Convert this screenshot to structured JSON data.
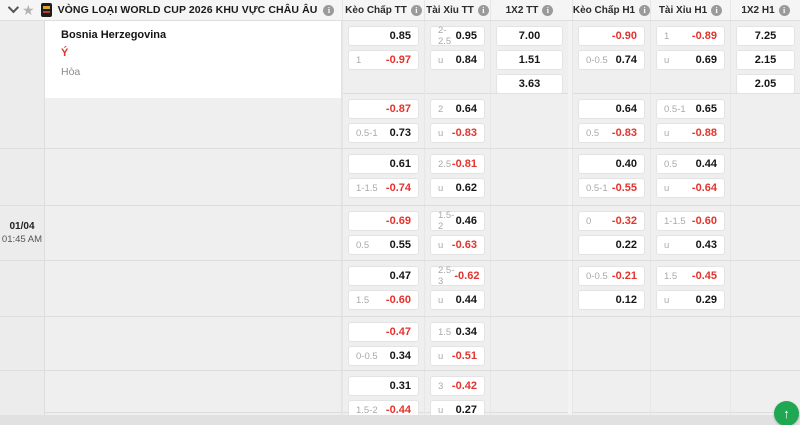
{
  "league": {
    "title": "VÒNG LOẠI WORLD CUP 2026 KHU VỰC CHÂU ÂU",
    "info_icon": "i"
  },
  "match": {
    "home": "Bosnia Herzegovina",
    "away": "Ý",
    "draw": "Hòa",
    "date": "01/04",
    "time": "01:45 AM"
  },
  "columns": [
    "Kèo Chấp TT",
    "Tài Xỉu TT",
    "1X2 TT",
    "Kèo Chấp H1",
    "Tài Xỉu H1",
    "1X2 H1"
  ],
  "colors": {
    "negative": "#e2342e",
    "scrolltop_green": "#1fa851"
  },
  "scrolltop_label": "↑",
  "blocks": [
    {
      "hdp_tt": [
        {
          "label": "",
          "value": "0.85"
        },
        {
          "label": "1",
          "value": "-0.97"
        }
      ],
      "ou_tt": [
        {
          "label": "2-2.5",
          "value": "0.95"
        },
        {
          "label": "u",
          "value": "0.84"
        }
      ],
      "x2_tt": [
        "7.00",
        "1.51",
        "3.63"
      ],
      "hdp_h1": [
        {
          "label": "",
          "value": "-0.90"
        },
        {
          "label": "0-0.5",
          "value": "0.74"
        }
      ],
      "ou_h1": [
        {
          "label": "1",
          "value": "-0.89"
        },
        {
          "label": "u",
          "value": "0.69"
        }
      ],
      "x2_h1": [
        "7.25",
        "2.15",
        "2.05"
      ]
    },
    {
      "hdp_tt": [
        {
          "label": "",
          "value": "-0.87"
        },
        {
          "label": "0.5-1",
          "value": "0.73"
        }
      ],
      "ou_tt": [
        {
          "label": "2",
          "value": "0.64"
        },
        {
          "label": "u",
          "value": "-0.83"
        }
      ],
      "x2_tt": [],
      "hdp_h1": [
        {
          "label": "",
          "value": "0.64"
        },
        {
          "label": "0.5",
          "value": "-0.83"
        }
      ],
      "ou_h1": [
        {
          "label": "0.5-1",
          "value": "0.65"
        },
        {
          "label": "u",
          "value": "-0.88"
        }
      ],
      "x2_h1": []
    },
    {
      "hdp_tt": [
        {
          "label": "",
          "value": "0.61"
        },
        {
          "label": "1-1.5",
          "value": "-0.74"
        }
      ],
      "ou_tt": [
        {
          "label": "2.5",
          "value": "-0.81"
        },
        {
          "label": "u",
          "value": "0.62"
        }
      ],
      "x2_tt": [],
      "hdp_h1": [
        {
          "label": "",
          "value": "0.40"
        },
        {
          "label": "0.5-1",
          "value": "-0.55"
        }
      ],
      "ou_h1": [
        {
          "label": "0.5",
          "value": "0.44"
        },
        {
          "label": "u",
          "value": "-0.64"
        }
      ],
      "x2_h1": []
    },
    {
      "hdp_tt": [
        {
          "label": "",
          "value": "-0.69"
        },
        {
          "label": "0.5",
          "value": "0.55"
        }
      ],
      "ou_tt": [
        {
          "label": "1.5-2",
          "value": "0.46"
        },
        {
          "label": "u",
          "value": "-0.63"
        }
      ],
      "x2_tt": [],
      "hdp_h1": [
        {
          "label": "0",
          "value": "-0.32"
        },
        {
          "label": "",
          "value": "0.22"
        }
      ],
      "ou_h1": [
        {
          "label": "1-1.5",
          "value": "-0.60"
        },
        {
          "label": "u",
          "value": "0.43"
        }
      ],
      "x2_h1": []
    },
    {
      "hdp_tt": [
        {
          "label": "",
          "value": "0.47"
        },
        {
          "label": "1.5",
          "value": "-0.60"
        }
      ],
      "ou_tt": [
        {
          "label": "2.5-3",
          "value": "-0.62"
        },
        {
          "label": "u",
          "value": "0.44"
        }
      ],
      "x2_tt": [],
      "hdp_h1": [
        {
          "label": "0-0.5",
          "value": "-0.21"
        },
        {
          "label": "",
          "value": "0.12"
        }
      ],
      "ou_h1": [
        {
          "label": "1.5",
          "value": "-0.45"
        },
        {
          "label": "u",
          "value": "0.29"
        }
      ],
      "x2_h1": []
    },
    {
      "hdp_tt": [
        {
          "label": "",
          "value": "-0.47"
        },
        {
          "label": "0-0.5",
          "value": "0.34"
        }
      ],
      "ou_tt": [
        {
          "label": "1.5",
          "value": "0.34"
        },
        {
          "label": "u",
          "value": "-0.51"
        }
      ],
      "x2_tt": [],
      "hdp_h1": [],
      "ou_h1": [],
      "x2_h1": []
    },
    {
      "hdp_tt": [
        {
          "label": "",
          "value": "0.31"
        },
        {
          "label": "1.5-2",
          "value": "-0.44"
        }
      ],
      "ou_tt": [
        {
          "label": "3",
          "value": "-0.42"
        },
        {
          "label": "u",
          "value": "0.27"
        }
      ],
      "x2_tt": [],
      "hdp_h1": [],
      "ou_h1": [],
      "x2_h1": []
    }
  ]
}
